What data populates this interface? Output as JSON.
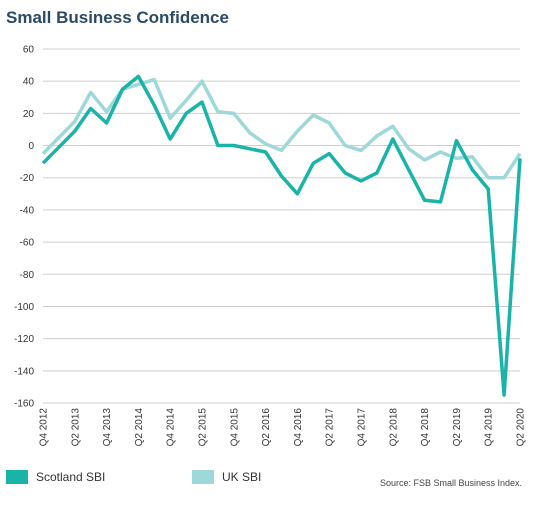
{
  "chart_data": {
    "type": "line",
    "title": "Small Business Confidence",
    "source": "Source: FSB Small Business Index.",
    "ylim": [
      -160,
      60
    ],
    "yticks": [
      60,
      40,
      20,
      0,
      -20,
      -40,
      -60,
      -80,
      -100,
      -120,
      -140,
      -160
    ],
    "grid": true,
    "legend_position": "bottom",
    "x_labels": [
      {
        "index": 0,
        "label": "Q4 2012"
      },
      {
        "index": 2,
        "label": "Q2 2013"
      },
      {
        "index": 4,
        "label": "Q4 2013"
      },
      {
        "index": 6,
        "label": "Q2 2014"
      },
      {
        "index": 8,
        "label": "Q4 2014"
      },
      {
        "index": 10,
        "label": "Q2 2015"
      },
      {
        "index": 12,
        "label": "Q4 2015"
      },
      {
        "index": 14,
        "label": "Q2 2016"
      },
      {
        "index": 16,
        "label": "Q4 2016"
      },
      {
        "index": 18,
        "label": "Q2 2017"
      },
      {
        "index": 20,
        "label": "Q4 2017"
      },
      {
        "index": 22,
        "label": "Q2 2018"
      },
      {
        "index": 24,
        "label": "Q4 2018"
      },
      {
        "index": 26,
        "label": "Q2 2019"
      },
      {
        "index": 28,
        "label": "Q4 2019"
      },
      {
        "index": 30,
        "label": "Q2 2020"
      }
    ],
    "series": [
      {
        "name": "Scotland SBI",
        "color": "#1ab3a8",
        "values": [
          -11,
          -1,
          9,
          23,
          14,
          35,
          43,
          25,
          4,
          20,
          27,
          0,
          0,
          -2,
          -4,
          -19,
          -30,
          -11,
          -5,
          -17,
          -22,
          -17,
          4,
          -15,
          -34,
          -35,
          3,
          -15,
          -27,
          -155,
          -8
        ]
      },
      {
        "name": "UK SBI",
        "color": "#9fd8d9",
        "values": [
          -5,
          5,
          15,
          33,
          21,
          35,
          38,
          41,
          17,
          28,
          40,
          21,
          20,
          8,
          1,
          -3,
          9,
          19,
          14,
          0,
          -3,
          6,
          12,
          -2,
          -9,
          -4,
          -8,
          -7,
          -20,
          -20,
          -5
        ]
      }
    ]
  }
}
